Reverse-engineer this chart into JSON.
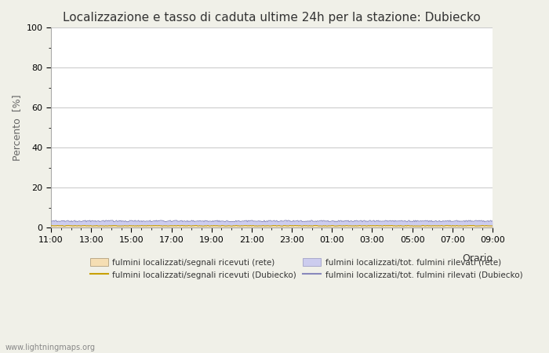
{
  "title": "Localizzazione e tasso di caduta ultime 24h per la stazione: Dubiecko",
  "ylabel": "Percento  [%]",
  "xlabel": "Orario",
  "ylim": [
    0,
    100
  ],
  "yticks": [
    0,
    20,
    40,
    60,
    80,
    100
  ],
  "yticks_minor": [
    10,
    30,
    50,
    70,
    90
  ],
  "x_tick_labels": [
    "11:00",
    "13:00",
    "15:00",
    "17:00",
    "19:00",
    "21:00",
    "23:00",
    "01:00",
    "03:00",
    "05:00",
    "07:00",
    "09:00"
  ],
  "num_points": 500,
  "fill_rete_color": "#f5deb3",
  "fill_dubiecko_color": "#ccccee",
  "line_rete_color": "#c8a000",
  "line_dubiecko_color": "#8888bb",
  "fill_rete_value": 1.0,
  "fill_dubiecko_value": 3.2,
  "fig_bg_color": "#f0f0e8",
  "plot_bg_color": "#ffffff",
  "grid_color": "#cccccc",
  "watermark": "www.lightningmaps.org",
  "legend_labels": [
    "fulmini localizzati/segnali ricevuti (rete)",
    "fulmini localizzati/segnali ricevuti (Dubiecko)",
    "fulmini localizzati/tot. fulmini rilevati (rete)",
    "fulmini localizzati/tot. fulmini rilevati (Dubiecko)"
  ]
}
